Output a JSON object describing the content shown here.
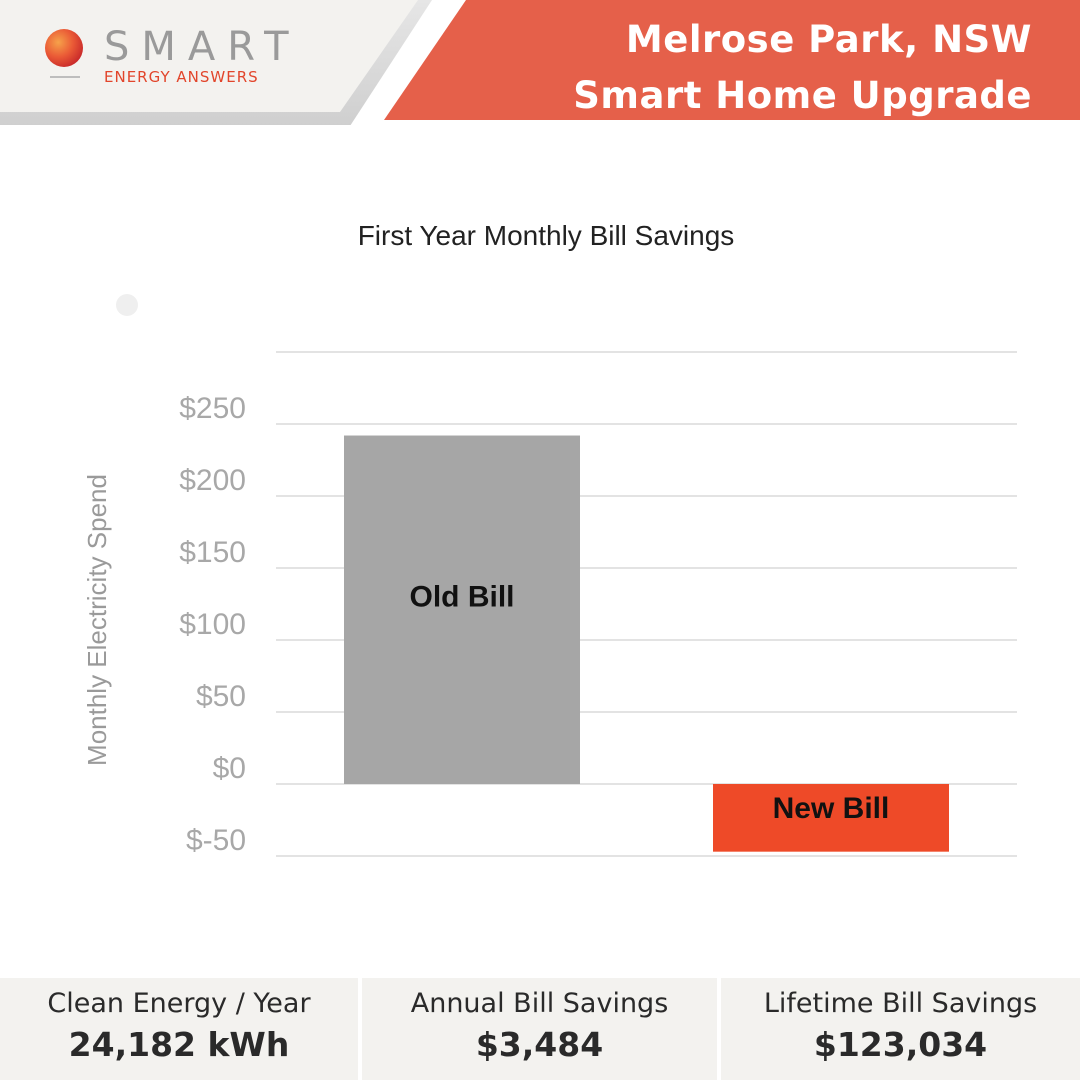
{
  "header": {
    "logo_word": "SMART",
    "logo_sub": "ENERGY ANSWERS",
    "title_line1": "Melrose Park, NSW",
    "title_line2": "Smart Home Upgrade",
    "accent_color": "#e5604a",
    "logo_orb_colors": [
      "#e23b2e",
      "#f08a3c"
    ]
  },
  "chart_data": {
    "type": "bar",
    "title": "First Year Monthly Bill Savings",
    "xlabel": "",
    "ylabel": "Monthly Electricity Spend",
    "categories": [
      "Old Bill",
      "New Bill"
    ],
    "values": [
      242,
      -47
    ],
    "bar_colors": [
      "#a6a6a6",
      "#ee4a28"
    ],
    "bar_labels": [
      "Old Bill",
      "New Bill"
    ],
    "yticks": [
      -50,
      0,
      50,
      100,
      150,
      200,
      250
    ],
    "tick_labels": [
      "$-50",
      "$0",
      "$50",
      "$100",
      "$150",
      "$200",
      "$250"
    ],
    "ylim": [
      -50,
      300
    ],
    "grid": true,
    "legend": "none"
  },
  "stats": [
    {
      "label": "Clean Energy / Year",
      "value": "24,182 kWh"
    },
    {
      "label": "Annual Bill Savings",
      "value": "$3,484"
    },
    {
      "label": "Lifetime Bill Savings",
      "value": "$123,034"
    }
  ]
}
